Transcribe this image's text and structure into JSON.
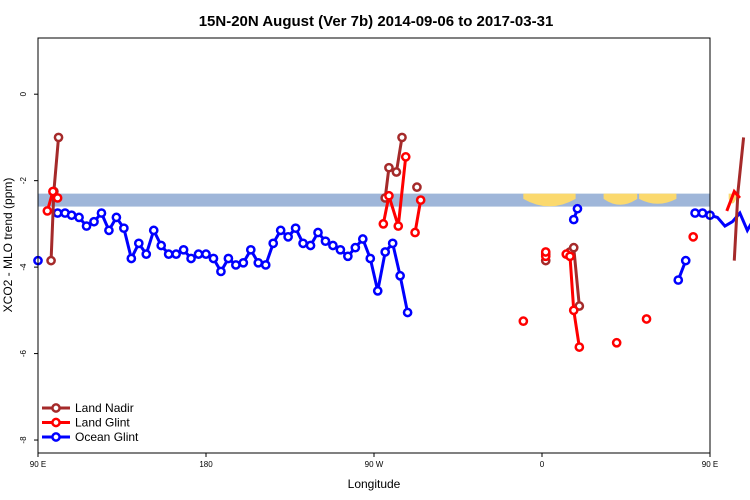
{
  "chart_data": {
    "type": "line",
    "title": "15N-20N August (Ver 7b)   2014-09-06 to 2017-03-31",
    "xlabel": "Longitude",
    "ylabel": "XCO2 - MLO trend (ppm)",
    "xlim": [
      90,
      450
    ],
    "ylim": [
      -8.3,
      1.3
    ],
    "grid": false,
    "legend_position": "bottom-left",
    "x_ticks": [
      {
        "value": 90,
        "label": "90 E"
      },
      {
        "value": 180,
        "label": "180"
      },
      {
        "value": 270,
        "label": "90 W"
      },
      {
        "value": 360,
        "label": "0"
      },
      {
        "value": 450,
        "label": "90 E"
      },
      {
        "value": 540,
        "label": "180"
      }
    ],
    "y_ticks": [
      {
        "value": 0,
        "label": "0"
      },
      {
        "value": -2,
        "label": "-2"
      },
      {
        "value": -4,
        "label": "-4"
      },
      {
        "value": -6,
        "label": "-6"
      },
      {
        "value": -8,
        "label": "-8"
      }
    ],
    "background_band": {
      "y_range": [
        -2.6,
        -2.3
      ],
      "ocean_color": "#9fb6d9",
      "land_color": "#fbd96e"
    },
    "series": [
      {
        "name": "Land Nadir",
        "color": "#a52a2a",
        "segments": [
          [
            [
              97,
              -3.85
            ],
            [
              98.5,
              -2.25
            ],
            [
              101,
              -1.0
            ]
          ],
          [
            [
              463,
              -3.85
            ],
            [
              465,
              -2.25
            ],
            [
              468,
              -1.0
            ]
          ],
          [
            [
              276,
              -2.4
            ],
            [
              278,
              -1.7
            ],
            [
              282,
              -1.8
            ],
            [
              285,
              -1.0
            ]
          ],
          [
            [
              293,
              -2.15
            ]
          ],
          [
            [
              362,
              -3.85
            ],
            [
              362,
              -3.7
            ]
          ],
          [
            [
              375,
              -3.65
            ],
            [
              377,
              -3.55
            ],
            [
              380,
              -4.9
            ]
          ]
        ]
      },
      {
        "name": "Land Glint",
        "color": "#ff0000",
        "segments": [
          [
            [
              95,
              -2.7
            ],
            [
              98,
              -2.25
            ],
            [
              100.5,
              -2.4
            ]
          ],
          [
            [
              459,
              -2.7
            ],
            [
              463,
              -2.25
            ],
            [
              466,
              -2.4
            ]
          ],
          [
            [
              275,
              -3.0
            ],
            [
              278,
              -2.35
            ],
            [
              283,
              -3.05
            ],
            [
              287,
              -1.45
            ]
          ],
          [
            [
              292,
              -3.2
            ],
            [
              295,
              -2.45
            ]
          ],
          [
            [
              350,
              -5.25
            ]
          ],
          [
            [
              362,
              -3.75
            ],
            [
              362,
              -3.65
            ]
          ],
          [
            [
              373,
              -3.7
            ],
            [
              375,
              -3.75
            ],
            [
              377,
              -5.0
            ],
            [
              380,
              -5.85
            ]
          ],
          [
            [
              400,
              -5.75
            ]
          ],
          [
            [
              416,
              -5.2
            ]
          ],
          [
            [
              441,
              -3.3
            ]
          ]
        ]
      },
      {
        "name": "Ocean Glint",
        "color": "#0000ff",
        "segments": [
          [
            [
              90,
              -3.85
            ]
          ],
          [
            [
              100.5,
              -2.75
            ],
            [
              104.5,
              -2.75
            ],
            [
              108,
              -2.8
            ],
            [
              112,
              -2.85
            ],
            [
              116,
              -3.05
            ],
            [
              120,
              -2.95
            ],
            [
              124,
              -2.75
            ],
            [
              128,
              -3.15
            ],
            [
              132,
              -2.85
            ],
            [
              136,
              -3.1
            ],
            [
              140,
              -3.8
            ],
            [
              144,
              -3.45
            ],
            [
              148,
              -3.7
            ],
            [
              152,
              -3.15
            ],
            [
              156,
              -3.5
            ],
            [
              160,
              -3.7
            ],
            [
              164,
              -3.7
            ],
            [
              168,
              -3.6
            ],
            [
              172,
              -3.8
            ],
            [
              176,
              -3.7
            ],
            [
              180,
              -3.7
            ],
            [
              184,
              -3.8
            ],
            [
              188,
              -4.1
            ],
            [
              192,
              -3.8
            ],
            [
              196,
              -3.95
            ],
            [
              200,
              -3.9
            ],
            [
              204,
              -3.6
            ],
            [
              208,
              -3.9
            ],
            [
              212,
              -3.95
            ],
            [
              216,
              -3.45
            ],
            [
              220,
              -3.15
            ],
            [
              224,
              -3.3
            ],
            [
              228,
              -3.1
            ],
            [
              232,
              -3.45
            ],
            [
              236,
              -3.5
            ],
            [
              240,
              -3.2
            ],
            [
              244,
              -3.4
            ],
            [
              248,
              -3.5
            ],
            [
              252,
              -3.6
            ],
            [
              256,
              -3.75
            ],
            [
              260,
              -3.55
            ],
            [
              264,
              -3.35
            ],
            [
              268,
              -3.8
            ],
            [
              272,
              -4.55
            ],
            [
              276,
              -3.65
            ],
            [
              280,
              -3.45
            ],
            [
              284,
              -4.2
            ],
            [
              288,
              -5.05
            ]
          ],
          [
            [
              377,
              -2.9
            ],
            [
              379,
              -2.65
            ]
          ],
          [
            [
              433,
              -4.3
            ],
            [
              437,
              -3.85
            ]
          ],
          [
            [
              442,
              -2.75
            ],
            [
              446,
              -2.75
            ],
            [
              450,
              -2.8
            ],
            [
              454,
              -2.85
            ],
            [
              458,
              -3.05
            ],
            [
              462,
              -2.95
            ],
            [
              466,
              -2.75
            ],
            [
              470,
              -3.15
            ],
            [
              474,
              -2.85
            ],
            [
              478,
              -3.1
            ],
            [
              482,
              -3.8
            ],
            [
              486,
              -3.45
            ],
            [
              490,
              -3.7
            ],
            [
              494,
              -3.15
            ],
            [
              498,
              -3.5
            ]
          ]
        ]
      }
    ]
  }
}
